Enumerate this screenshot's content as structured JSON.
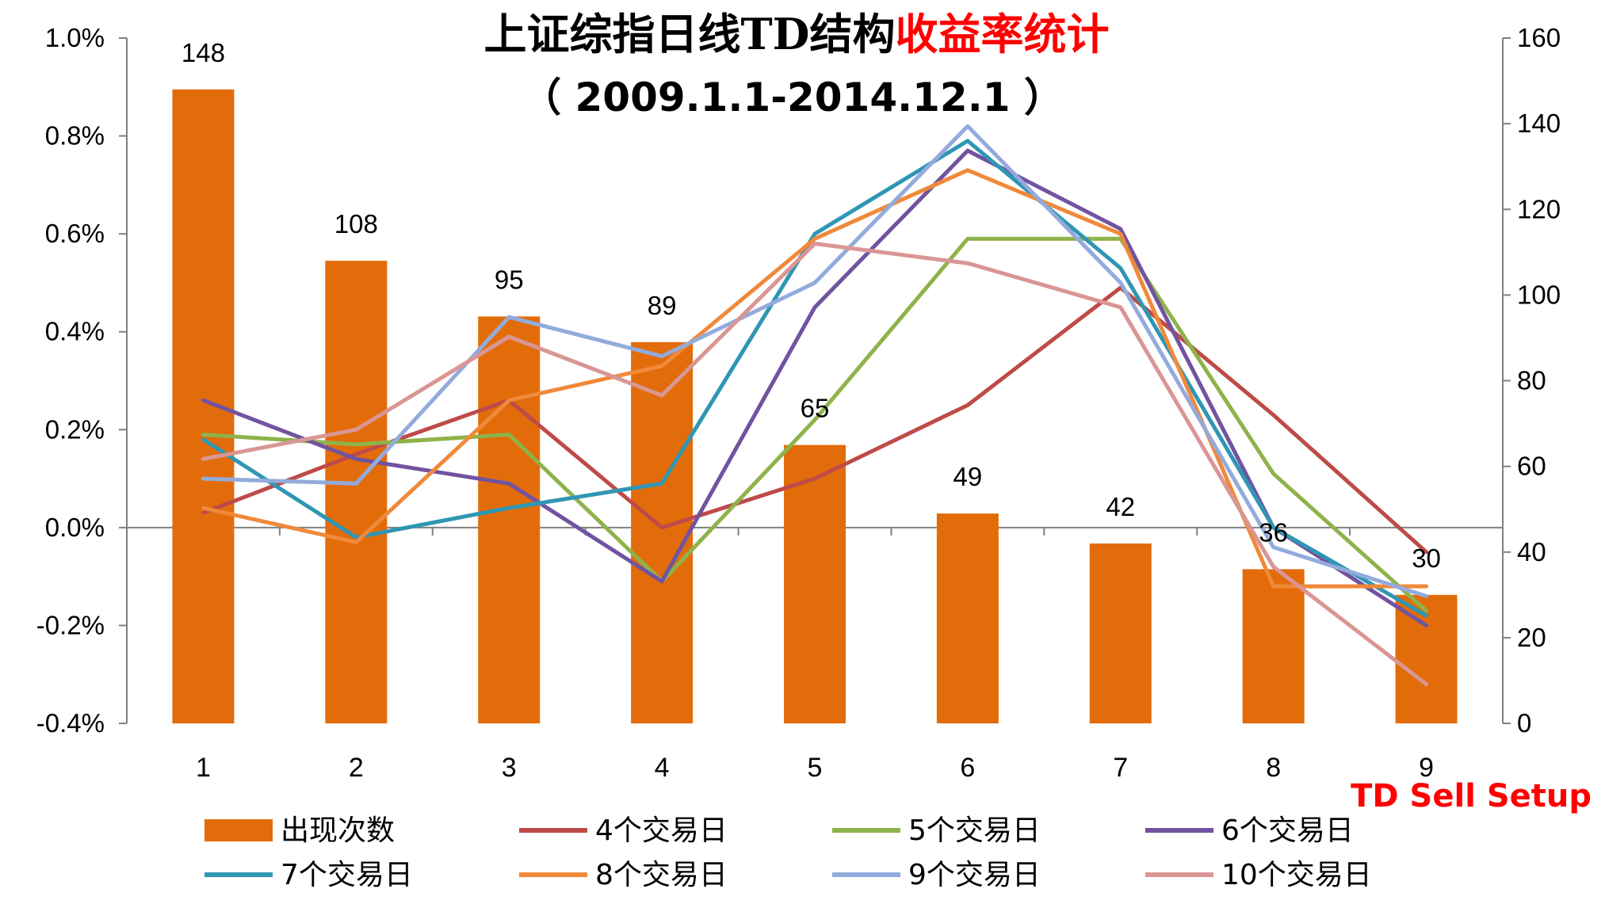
{
  "colors": {
    "bar": "#e36c0a",
    "title_red": "#ff0000",
    "axis": "#808080"
  },
  "chart_data": {
    "type": "bar+line",
    "title_black": "上证综指日线TD结构",
    "title_red": "收益率统计",
    "subtitle": "（ 2009.1.1-2014.12.1 ）",
    "xlabel": "TD Sell Setup",
    "categories": [
      "1",
      "2",
      "3",
      "4",
      "5",
      "6",
      "7",
      "8",
      "9"
    ],
    "y_left": {
      "min": -0.4,
      "max": 1.0,
      "step": 0.2,
      "ticks": [
        "-0.4%",
        "-0.2%",
        "0.0%",
        "0.2%",
        "0.4%",
        "0.6%",
        "0.8%",
        "1.0%"
      ]
    },
    "y_right": {
      "min": 0,
      "max": 160,
      "step": 20,
      "ticks": [
        "0",
        "20",
        "40",
        "60",
        "80",
        "100",
        "120",
        "140",
        "160"
      ]
    },
    "bars": {
      "name": "出现次数",
      "color": "#e36c0a",
      "values": [
        148,
        108,
        95,
        89,
        65,
        49,
        42,
        36,
        30
      ],
      "labels": [
        "148",
        "108",
        "95",
        "89",
        "65",
        "49",
        "42",
        "36",
        "30"
      ]
    },
    "series": [
      {
        "name": "4个交易日",
        "color": "#be4b48",
        "values": [
          0.03,
          0.15,
          0.26,
          0.0,
          0.1,
          0.25,
          0.49,
          0.23,
          -0.05
        ]
      },
      {
        "name": "5个交易日",
        "color": "#8eb34a",
        "values": [
          0.19,
          0.17,
          0.19,
          -0.11,
          0.22,
          0.59,
          0.59,
          0.11,
          -0.17
        ]
      },
      {
        "name": "6个交易日",
        "color": "#7153a0",
        "values": [
          0.26,
          0.14,
          0.09,
          -0.11,
          0.45,
          0.77,
          0.61,
          0.0,
          -0.2
        ]
      },
      {
        "name": "7个交易日",
        "color": "#2f96b4",
        "values": [
          0.18,
          -0.02,
          0.04,
          0.09,
          0.6,
          0.79,
          0.53,
          0.0,
          -0.18
        ]
      },
      {
        "name": "8个交易日",
        "color": "#f0893a",
        "values": [
          0.04,
          -0.03,
          0.26,
          0.33,
          0.59,
          0.73,
          0.6,
          -0.12,
          -0.12
        ]
      },
      {
        "name": "9个交易日",
        "color": "#93abdc",
        "values": [
          0.1,
          0.09,
          0.43,
          0.35,
          0.5,
          0.82,
          0.5,
          -0.04,
          -0.14
        ]
      },
      {
        "name": "10个交易日",
        "color": "#d99694",
        "values": [
          0.14,
          0.2,
          0.39,
          0.27,
          0.58,
          0.54,
          0.45,
          -0.08,
          -0.32
        ]
      }
    ],
    "legend_position": "bottom"
  }
}
